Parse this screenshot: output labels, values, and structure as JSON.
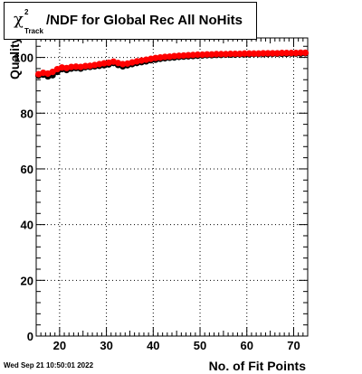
{
  "title": {
    "symbol": "χ",
    "superscript": "2",
    "subscript": "Track",
    "text": "/NDF for Global Rec All NoHits"
  },
  "timestamp": "Wed Sep 21 10:50:01 2022",
  "chart_data": {
    "type": "scatter",
    "xlabel": "No. of Fit Points",
    "ylabel": "Quality",
    "xlim": [
      15,
      73
    ],
    "ylim": [
      0,
      107
    ],
    "xticks": [
      20,
      30,
      40,
      50,
      60,
      70
    ],
    "yticks": [
      0,
      20,
      40,
      60,
      80,
      100
    ],
    "grid": true,
    "series": [
      {
        "color": "#000000",
        "points": [
          [
            15.5,
            93.5
          ],
          [
            16.5,
            93.8
          ],
          [
            17.5,
            93.2
          ],
          [
            18.5,
            93.6
          ],
          [
            19.5,
            94.8
          ],
          [
            20.5,
            95.8
          ],
          [
            21.5,
            95.5
          ],
          [
            22.5,
            96.0
          ],
          [
            23.5,
            96.2
          ],
          [
            24.5,
            96.0
          ],
          [
            25.5,
            96.5
          ],
          [
            26.5,
            96.6
          ],
          [
            27.5,
            96.8
          ],
          [
            28.5,
            97.0
          ],
          [
            29.5,
            97.2
          ],
          [
            30.5,
            97.5
          ],
          [
            31.5,
            98.0
          ],
          [
            32.5,
            97.3
          ],
          [
            33.5,
            96.8
          ],
          [
            34.5,
            97.2
          ],
          [
            35.5,
            97.6
          ],
          [
            36.5,
            98.0
          ],
          [
            37.5,
            98.3
          ],
          [
            38.5,
            98.6
          ],
          [
            39.5,
            99.0
          ],
          [
            40.5,
            99.2
          ],
          [
            41.5,
            99.5
          ],
          [
            42.5,
            99.7
          ],
          [
            43.5,
            99.9
          ],
          [
            44.5,
            100.0
          ],
          [
            45.5,
            100.2
          ],
          [
            46.5,
            100.3
          ],
          [
            47.5,
            100.4
          ],
          [
            48.5,
            100.5
          ],
          [
            49.5,
            100.6
          ],
          [
            50.5,
            100.7
          ],
          [
            51.5,
            100.8
          ],
          [
            52.5,
            100.8
          ],
          [
            53.5,
            100.9
          ],
          [
            54.5,
            100.9
          ],
          [
            55.5,
            101.0
          ],
          [
            56.5,
            101.0
          ],
          [
            57.5,
            101.0
          ],
          [
            58.5,
            101.1
          ],
          [
            59.5,
            101.1
          ],
          [
            60.5,
            101.1
          ],
          [
            61.5,
            101.2
          ],
          [
            62.5,
            101.2
          ],
          [
            63.5,
            101.2
          ],
          [
            64.5,
            101.2
          ],
          [
            65.5,
            101.3
          ],
          [
            66.5,
            101.3
          ],
          [
            67.5,
            101.3
          ],
          [
            68.5,
            101.3
          ],
          [
            69.5,
            101.4
          ],
          [
            70.5,
            101.4
          ],
          [
            71.5,
            101.4
          ],
          [
            72.5,
            101.5
          ]
        ]
      },
      {
        "color": "#ff0000",
        "points": [
          [
            15.5,
            94.0
          ],
          [
            16.5,
            94.5
          ],
          [
            17.5,
            94.2
          ],
          [
            18.5,
            94.8
          ],
          [
            19.5,
            95.8
          ],
          [
            20.5,
            96.4
          ],
          [
            21.5,
            96.2
          ],
          [
            22.5,
            96.6
          ],
          [
            23.5,
            96.7
          ],
          [
            24.5,
            96.6
          ],
          [
            25.5,
            96.9
          ],
          [
            26.5,
            97.0
          ],
          [
            27.5,
            97.3
          ],
          [
            28.5,
            97.6
          ],
          [
            29.5,
            97.9
          ],
          [
            30.5,
            98.1
          ],
          [
            31.5,
            98.5
          ],
          [
            32.5,
            98.0
          ],
          [
            33.5,
            97.6
          ],
          [
            34.5,
            97.8
          ],
          [
            35.5,
            98.2
          ],
          [
            36.5,
            98.6
          ],
          [
            37.5,
            98.9
          ],
          [
            38.5,
            99.2
          ],
          [
            39.5,
            99.5
          ],
          [
            40.5,
            99.8
          ],
          [
            41.5,
            100.0
          ],
          [
            42.5,
            100.2
          ],
          [
            43.5,
            100.3
          ],
          [
            44.5,
            100.5
          ],
          [
            45.5,
            100.6
          ],
          [
            46.5,
            100.7
          ],
          [
            47.5,
            100.8
          ],
          [
            48.5,
            100.9
          ],
          [
            49.5,
            101.0
          ],
          [
            50.5,
            101.0
          ],
          [
            51.5,
            101.1
          ],
          [
            52.5,
            101.1
          ],
          [
            53.5,
            101.2
          ],
          [
            54.5,
            101.2
          ],
          [
            55.5,
            101.2
          ],
          [
            56.5,
            101.3
          ],
          [
            57.5,
            101.3
          ],
          [
            58.5,
            101.3
          ],
          [
            59.5,
            101.4
          ],
          [
            60.5,
            101.4
          ],
          [
            61.5,
            101.4
          ],
          [
            62.5,
            101.4
          ],
          [
            63.5,
            101.5
          ],
          [
            64.5,
            101.5
          ],
          [
            65.5,
            101.5
          ],
          [
            66.5,
            101.5
          ],
          [
            67.5,
            101.6
          ],
          [
            68.5,
            101.6
          ],
          [
            69.5,
            101.6
          ],
          [
            70.5,
            101.6
          ],
          [
            71.5,
            101.7
          ],
          [
            72.5,
            101.7
          ]
        ]
      }
    ]
  }
}
